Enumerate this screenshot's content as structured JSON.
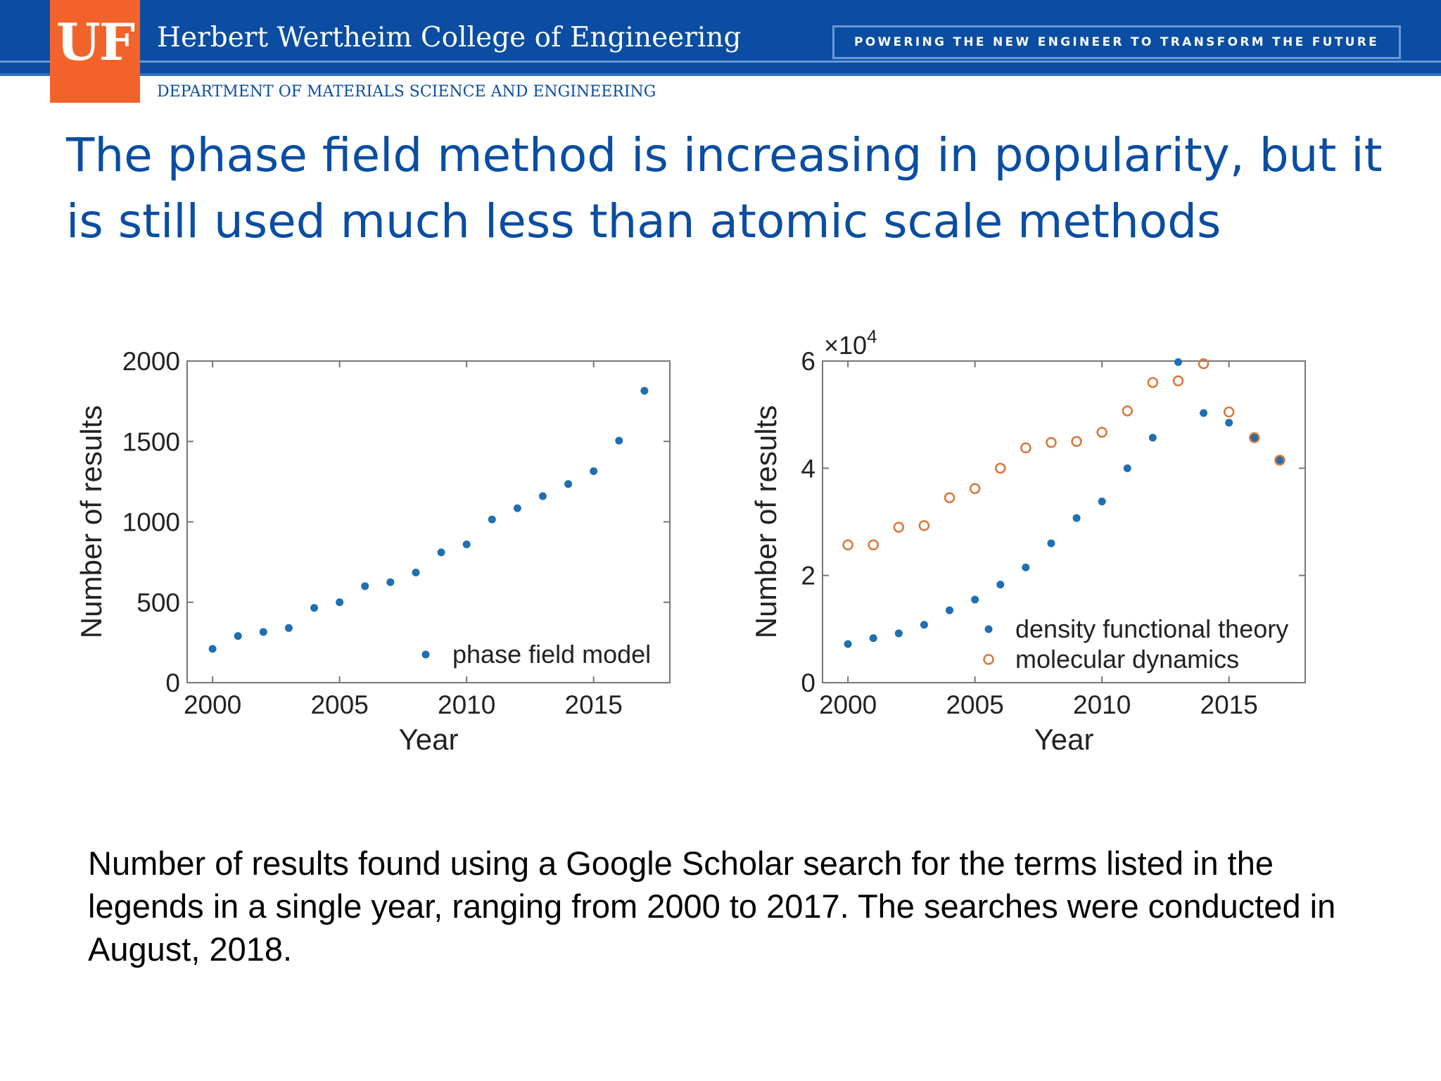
{
  "header": {
    "logo_text": "UF",
    "college": "Herbert Wertheim College of Engineering",
    "tagline": "POWERING THE NEW ENGINEER TO TRANSFORM THE FUTURE",
    "department": "DEPARTMENT OF MATERIALS SCIENCE AND ENGINEERING",
    "colors": {
      "brand_blue": "#0a4da2",
      "logo_orange": "#f2632b"
    }
  },
  "slide": {
    "title": "The phase field method is increasing in popularity, but it is still used much less than atomic scale methods",
    "caption": "Number of results found using a Google Scholar search for the terms listed in the legends in a single year, ranging from 2000 to 2017. The searches were conducted in August, 2018."
  },
  "chart_data": [
    {
      "type": "scatter",
      "xlabel": "Year",
      "ylabel": "Number of results",
      "xlim": [
        1999,
        2018
      ],
      "ylim": [
        0,
        2000
      ],
      "xticks": [
        2000,
        2005,
        2010,
        2015
      ],
      "yticks": [
        0,
        500,
        1000,
        1500,
        2000
      ],
      "legend_position": "bottom-right",
      "series": [
        {
          "name": "phase field model",
          "marker": "filled",
          "color": "#1f6fb2",
          "x": [
            2000,
            2001,
            2002,
            2003,
            2004,
            2005,
            2006,
            2007,
            2008,
            2009,
            2010,
            2011,
            2012,
            2013,
            2014,
            2015,
            2016,
            2017
          ],
          "y": [
            210,
            290,
            315,
            340,
            465,
            500,
            600,
            625,
            685,
            810,
            860,
            1015,
            1085,
            1160,
            1235,
            1315,
            1505,
            1815
          ]
        }
      ]
    },
    {
      "type": "scatter",
      "xlabel": "Year",
      "ylabel": "Number of results",
      "y_multiplier": "×10",
      "y_exponent": "4",
      "xlim": [
        1999,
        2018
      ],
      "ylim": [
        0,
        6
      ],
      "xticks": [
        2000,
        2005,
        2010,
        2015
      ],
      "yticks": [
        0,
        2,
        4,
        6
      ],
      "legend_position": "bottom-right",
      "series": [
        {
          "name": "density functional theory",
          "marker": "filled",
          "color": "#1f6fb2",
          "x": [
            2000,
            2001,
            2002,
            2003,
            2004,
            2005,
            2006,
            2007,
            2008,
            2009,
            2010,
            2011,
            2012,
            2013,
            2014,
            2015,
            2016,
            2017
          ],
          "y": [
            0.72,
            0.83,
            0.92,
            1.08,
            1.35,
            1.55,
            1.83,
            2.15,
            2.6,
            3.07,
            3.38,
            4.0,
            4.57,
            5.98,
            5.03,
            4.85,
            4.57,
            4.15
          ]
        },
        {
          "name": "molecular dynamics",
          "marker": "open",
          "color": "#d9773a",
          "x": [
            2000,
            2001,
            2002,
            2003,
            2004,
            2005,
            2006,
            2007,
            2008,
            2009,
            2010,
            2011,
            2012,
            2013,
            2014,
            2015,
            2016,
            2017
          ],
          "y": [
            2.57,
            2.57,
            2.9,
            2.93,
            3.45,
            3.62,
            4.0,
            4.38,
            4.48,
            4.5,
            4.67,
            5.07,
            5.6,
            5.63,
            5.95,
            5.05,
            4.57,
            4.15
          ]
        }
      ]
    }
  ]
}
